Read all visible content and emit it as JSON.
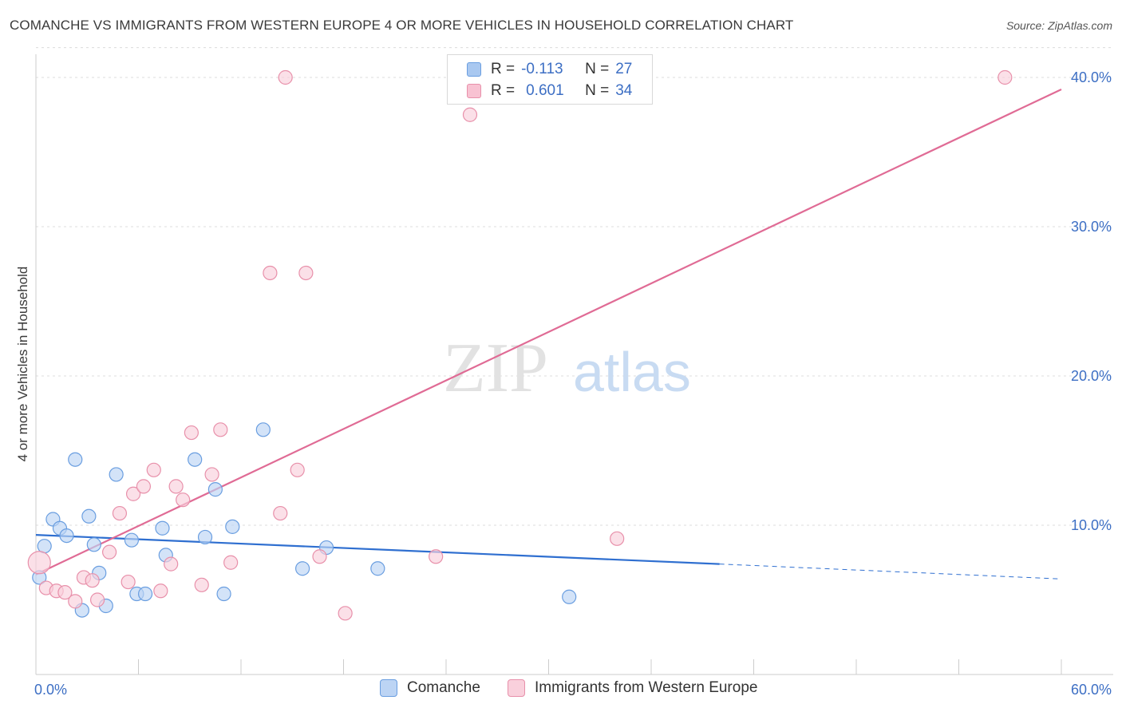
{
  "title": "COMANCHE VS IMMIGRANTS FROM WESTERN EUROPE 4 OR MORE VEHICLES IN HOUSEHOLD CORRELATION CHART",
  "source": "Source: ZipAtlas.com",
  "watermark": {
    "zip": "ZIP",
    "atlas": "atlas"
  },
  "legend": {
    "r_label": "R =",
    "n_label": "N =",
    "rows": [
      {
        "r": "-0.113",
        "n": "27",
        "color": "#a9c8f0",
        "border": "#6a9ee0"
      },
      {
        "r": "0.601",
        "n": "34",
        "color": "#f8c2d2",
        "border": "#e890aa"
      }
    ]
  },
  "bottom_legend": [
    {
      "label": "Comanche",
      "color": "#bcd4f4",
      "border": "#6a9ee0"
    },
    {
      "label": "Immigrants from Western Europe",
      "color": "#f9d0dc",
      "border": "#e890aa"
    }
  ],
  "chart_data": {
    "type": "scatter",
    "ylabel": "4 or more Vehicles in Household",
    "xlabel": "",
    "xlim": [
      0,
      60
    ],
    "ylim": [
      0,
      42
    ],
    "x_tick_labels": [
      "0.0%",
      "60.0%"
    ],
    "y_ticks": [
      10,
      20,
      30,
      40
    ],
    "y_tick_labels": [
      "10.0%",
      "20.0%",
      "30.0%",
      "40.0%"
    ],
    "grid": true,
    "series": [
      {
        "name": "Comanche",
        "color": "#6a9ee0",
        "fill": "#bcd4f4",
        "points": [
          [
            0.2,
            6.5
          ],
          [
            0.5,
            8.6
          ],
          [
            1.0,
            10.4
          ],
          [
            1.4,
            9.8
          ],
          [
            1.8,
            9.3
          ],
          [
            2.3,
            14.4
          ],
          [
            2.7,
            4.3
          ],
          [
            3.1,
            10.6
          ],
          [
            3.4,
            8.7
          ],
          [
            3.7,
            6.8
          ],
          [
            4.1,
            4.6
          ],
          [
            4.7,
            13.4
          ],
          [
            5.6,
            9.0
          ],
          [
            5.9,
            5.4
          ],
          [
            6.4,
            5.4
          ],
          [
            7.4,
            9.8
          ],
          [
            7.6,
            8.0
          ],
          [
            9.3,
            14.4
          ],
          [
            9.9,
            9.2
          ],
          [
            10.5,
            12.4
          ],
          [
            11.0,
            5.4
          ],
          [
            11.5,
            9.9
          ],
          [
            13.3,
            16.4
          ],
          [
            15.6,
            7.1
          ],
          [
            17.0,
            8.5
          ],
          [
            20.0,
            7.1
          ],
          [
            31.2,
            5.2
          ]
        ],
        "trend": {
          "x0": 0,
          "y0": 9.35,
          "x1": 40,
          "y1": 7.4,
          "dash_to_x": 60,
          "dash_to_y": 6.4
        }
      },
      {
        "name": "Immigrants from Western Europe",
        "color": "#e890aa",
        "fill": "#f9d0dc",
        "points": [
          [
            0.2,
            7.5
          ],
          [
            0.6,
            5.8
          ],
          [
            1.2,
            5.6
          ],
          [
            1.7,
            5.5
          ],
          [
            2.3,
            4.9
          ],
          [
            2.8,
            6.5
          ],
          [
            3.3,
            6.3
          ],
          [
            3.6,
            5.0
          ],
          [
            4.3,
            8.2
          ],
          [
            4.9,
            10.8
          ],
          [
            5.4,
            6.2
          ],
          [
            5.7,
            12.1
          ],
          [
            6.3,
            12.6
          ],
          [
            6.9,
            13.7
          ],
          [
            7.3,
            5.6
          ],
          [
            7.9,
            7.4
          ],
          [
            8.2,
            12.6
          ],
          [
            8.6,
            11.7
          ],
          [
            9.1,
            16.2
          ],
          [
            9.7,
            6.0
          ],
          [
            10.3,
            13.4
          ],
          [
            10.8,
            16.4
          ],
          [
            11.4,
            7.5
          ],
          [
            13.7,
            26.9
          ],
          [
            14.3,
            10.8
          ],
          [
            14.6,
            40.0
          ],
          [
            15.3,
            13.7
          ],
          [
            15.8,
            26.9
          ],
          [
            16.6,
            7.9
          ],
          [
            18.1,
            4.1
          ],
          [
            23.4,
            7.9
          ],
          [
            25.4,
            37.5
          ],
          [
            34.0,
            9.1
          ],
          [
            56.7,
            40.0
          ]
        ],
        "trend": {
          "x0": 0,
          "y0": 6.7,
          "x1": 60,
          "y1": 39.2
        }
      }
    ]
  }
}
